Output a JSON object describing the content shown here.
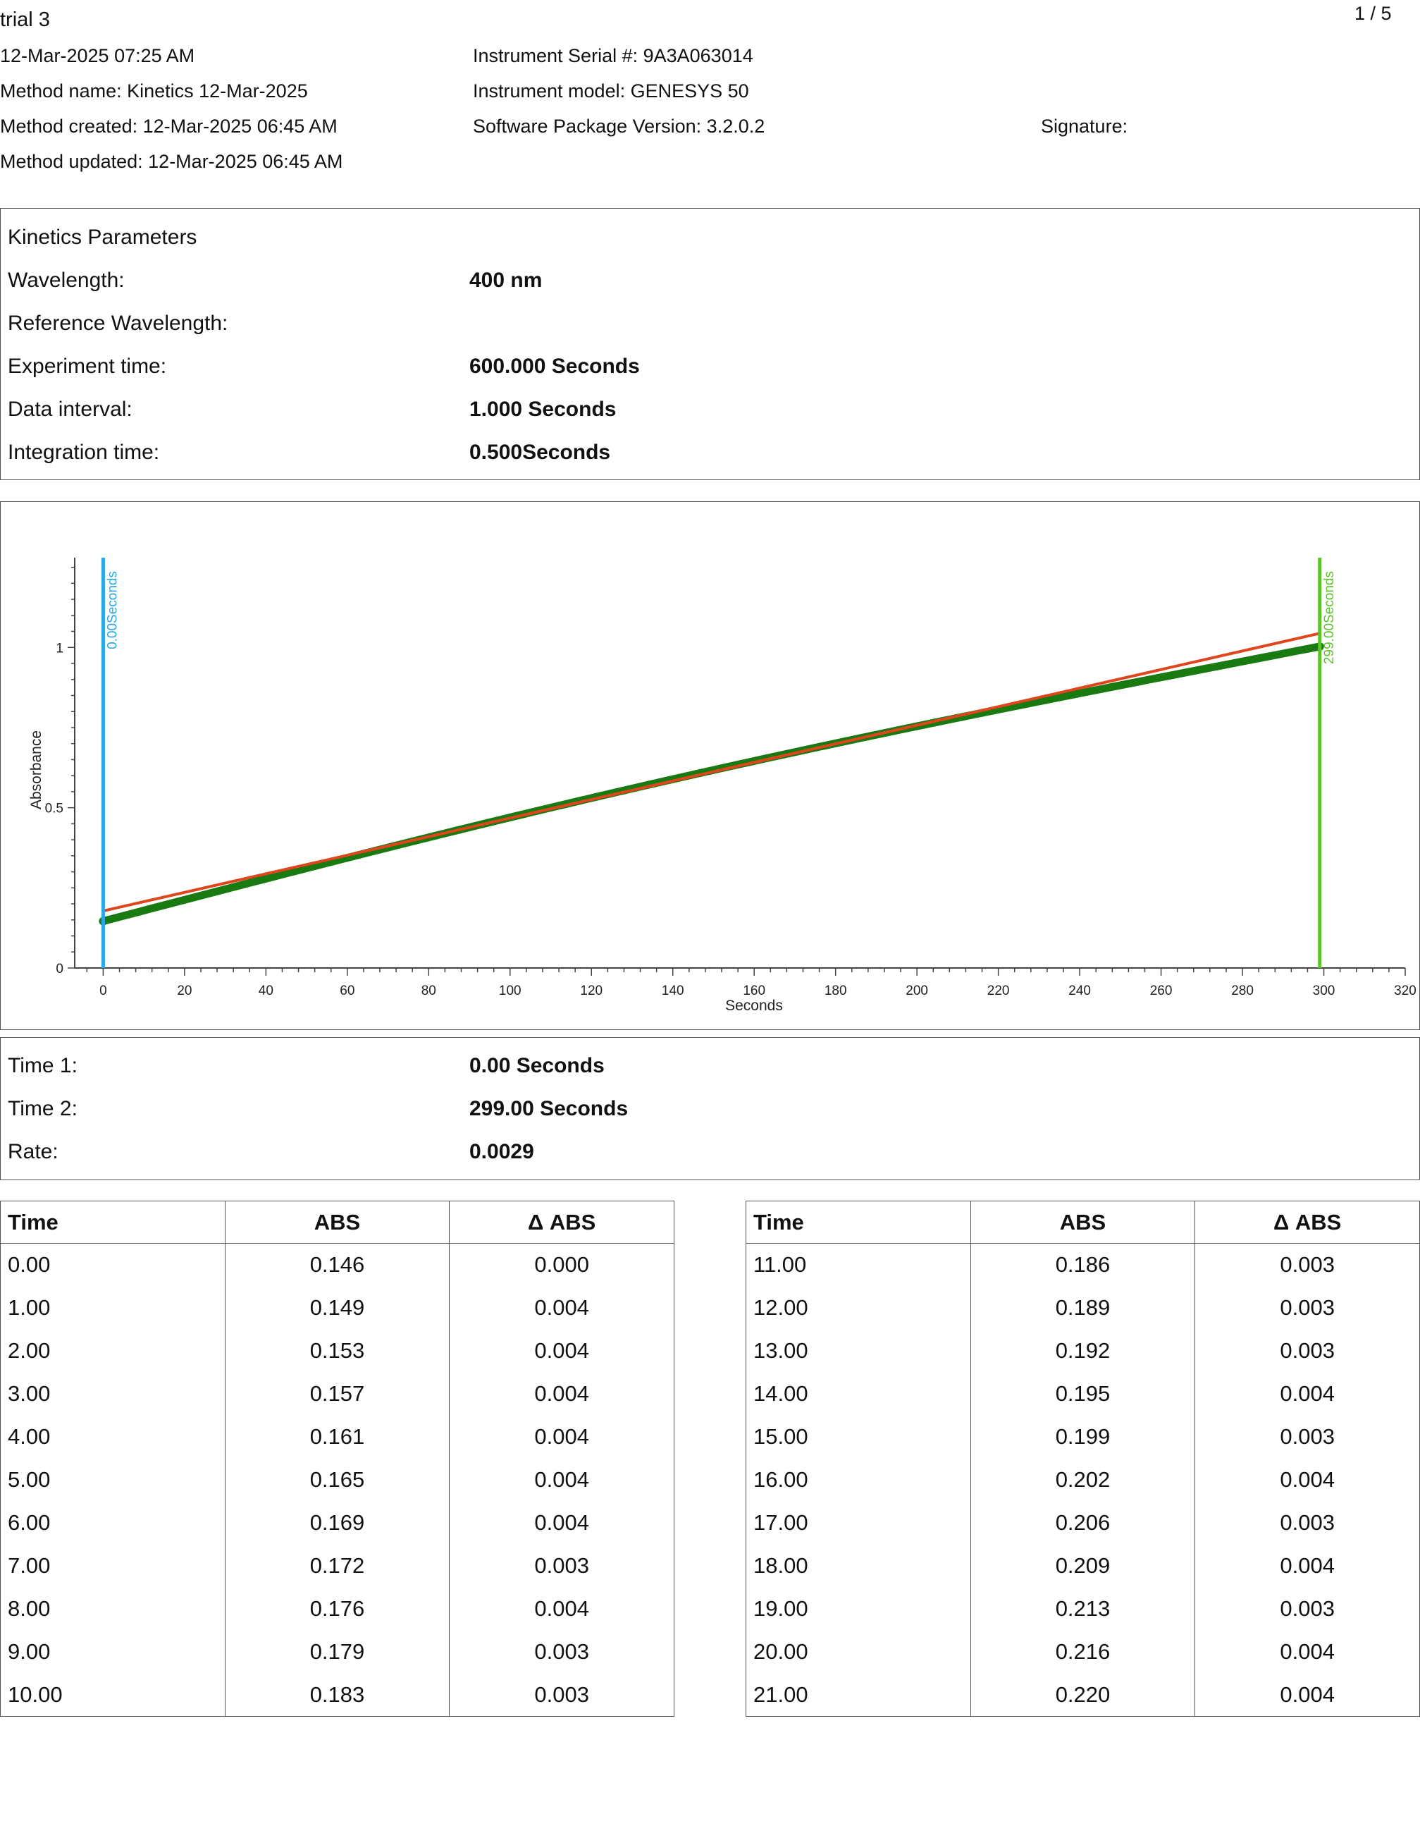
{
  "header": {
    "title": "trial 3",
    "page_indicator": "1 / 5",
    "timestamp": "12-Mar-2025 07:25 AM",
    "method_name": "Method name: Kinetics 12-Mar-2025",
    "method_created": "Method created: 12-Mar-2025 06:45 AM",
    "method_updated": "Method updated: 12-Mar-2025 06:45 AM",
    "instrument_serial": "Instrument Serial #: 9A3A063014",
    "instrument_model": "Instrument model: GENESYS 50",
    "software_version": "Software Package Version: 3.2.0.2",
    "signature_label": "Signature:"
  },
  "parameters": {
    "heading": "Kinetics Parameters",
    "rows": [
      {
        "label": "Wavelength:",
        "value": "400 nm"
      },
      {
        "label": "Reference Wavelength:",
        "value": ""
      },
      {
        "label": "Experiment time:",
        "value": "600.000 Seconds"
      },
      {
        "label": "Data interval:",
        "value": "1.000 Seconds"
      },
      {
        "label": "Integration time:",
        "value": "0.500Seconds"
      }
    ]
  },
  "chart_data": {
    "type": "scatter",
    "xlabel": "Seconds",
    "ylabel": "Absorbance",
    "xlim": [
      -7,
      320
    ],
    "ylim": [
      0,
      1.28
    ],
    "x_ticks": [
      0,
      20,
      40,
      60,
      80,
      100,
      120,
      140,
      160,
      180,
      200,
      220,
      240,
      260,
      280,
      300,
      320
    ],
    "y_ticks": [
      0,
      0.5,
      1
    ],
    "y_tick_labels": [
      "0",
      "0.5",
      "1"
    ],
    "series_color": "#1a7a12",
    "fit_color": "#e0461e",
    "marker1": {
      "x": 0,
      "label": "0.00Seconds",
      "color": "#2aa7e6"
    },
    "marker2": {
      "x": 299,
      "label": "299.00Seconds",
      "color": "#5cc42b"
    },
    "data_start": [
      0,
      0.146
    ],
    "data_end": [
      299,
      1.003
    ],
    "fit_line": {
      "x": [
        0,
        299
      ],
      "y": [
        0.178,
        1.044
      ]
    }
  },
  "results": {
    "rows": [
      {
        "label": "Time 1:",
        "value": "0.00 Seconds"
      },
      {
        "label": "Time 2:",
        "value": "299.00 Seconds"
      },
      {
        "label": "Rate:",
        "value": "0.0029"
      }
    ]
  },
  "table_headers": [
    "Time",
    "ABS",
    "Δ ABS"
  ],
  "table_left": [
    [
      "0.00",
      "0.146",
      "0.000"
    ],
    [
      "1.00",
      "0.149",
      "0.004"
    ],
    [
      "2.00",
      "0.153",
      "0.004"
    ],
    [
      "3.00",
      "0.157",
      "0.004"
    ],
    [
      "4.00",
      "0.161",
      "0.004"
    ],
    [
      "5.00",
      "0.165",
      "0.004"
    ],
    [
      "6.00",
      "0.169",
      "0.004"
    ],
    [
      "7.00",
      "0.172",
      "0.003"
    ],
    [
      "8.00",
      "0.176",
      "0.004"
    ],
    [
      "9.00",
      "0.179",
      "0.003"
    ],
    [
      "10.00",
      "0.183",
      "0.003"
    ]
  ],
  "table_right": [
    [
      "11.00",
      "0.186",
      "0.003"
    ],
    [
      "12.00",
      "0.189",
      "0.003"
    ],
    [
      "13.00",
      "0.192",
      "0.003"
    ],
    [
      "14.00",
      "0.195",
      "0.004"
    ],
    [
      "15.00",
      "0.199",
      "0.003"
    ],
    [
      "16.00",
      "0.202",
      "0.004"
    ],
    [
      "17.00",
      "0.206",
      "0.003"
    ],
    [
      "18.00",
      "0.209",
      "0.004"
    ],
    [
      "19.00",
      "0.213",
      "0.003"
    ],
    [
      "20.00",
      "0.216",
      "0.004"
    ],
    [
      "21.00",
      "0.220",
      "0.004"
    ]
  ]
}
